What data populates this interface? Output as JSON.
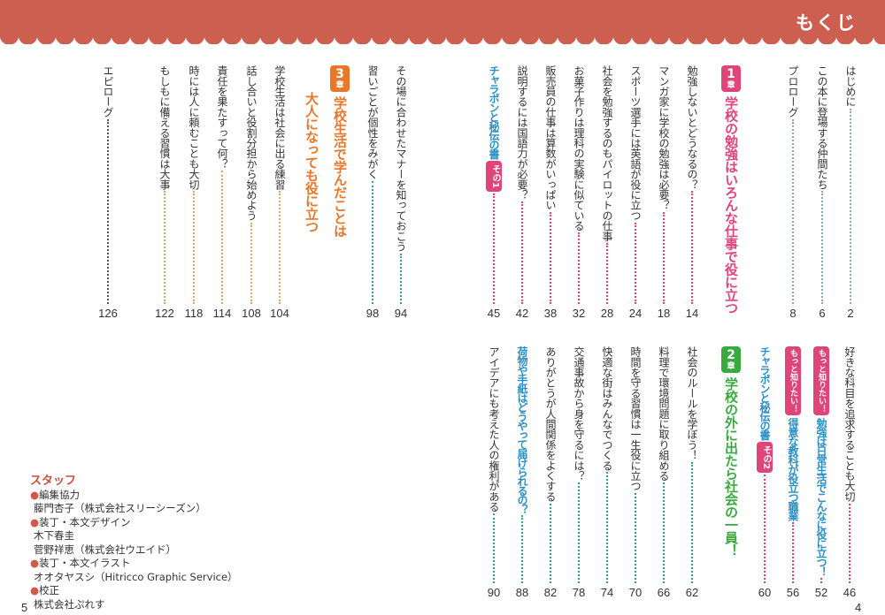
{
  "header": {
    "title": "もくじ"
  },
  "colors": {
    "header": "#cd5f50",
    "chapter1": "#e0457a",
    "chapter2": "#3aaa3f",
    "chapter3": "#e8772a",
    "special": "#2a8fc4",
    "badge": "#e0457a"
  },
  "right_top": [
    {
      "type": "item",
      "text": "はじめに",
      "page": "2"
    },
    {
      "type": "item",
      "text": "この本に登場する仲間たち",
      "page": "6"
    },
    {
      "type": "item",
      "text": "プロローグ",
      "page": "8"
    },
    {
      "type": "chapter",
      "num": "1",
      "suffix": "章",
      "lines": [
        "学校の勉強はいろんな仕事で役に立つ"
      ],
      "color": "#e0457a"
    },
    {
      "type": "item",
      "text": "勉強しないとどうなるの？",
      "page": "14",
      "lead": "#e0457a"
    },
    {
      "type": "item",
      "text": "マンガ家に学校の勉強は必要？",
      "page": "18",
      "lead": "#e0457a"
    },
    {
      "type": "item",
      "text": "スポーツ選手には英語が役に立つ",
      "page": "24",
      "lead": "#e0457a"
    },
    {
      "type": "item",
      "text": "社会を勉強するのもパイロットの仕事",
      "page": "28",
      "lead": "#e0457a"
    },
    {
      "type": "item",
      "text": "お菓子作りは理科の実験に似ている",
      "page": "32",
      "lead": "#e0457a"
    },
    {
      "type": "item",
      "text": "販売員の仕事は算数がいっぱい",
      "page": "38",
      "lead": "#e0457a"
    },
    {
      "type": "item",
      "text": "説明するには国語力が必要？",
      "page": "42",
      "lead": "#e0457a"
    },
    {
      "type": "sono",
      "text": "チャラポンと秘伝の書",
      "badge": "その1",
      "page": "45",
      "lead": "#e0457a"
    }
  ],
  "right_bottom": [
    {
      "type": "item",
      "text": "好きな科目を追求することも大切",
      "page": "46",
      "lead": "#e0457a"
    },
    {
      "type": "motto",
      "badge": "もっと知りたい！",
      "text": "勉強は日常生活でこんなに役に立つ！",
      "page": "52",
      "lead": "#e0457a"
    },
    {
      "type": "motto",
      "badge": "もっと知りたい！",
      "text": "得意な教科が役立つ職業",
      "page": "56",
      "lead": "#e0457a"
    },
    {
      "type": "sono",
      "text": "チャラポンと秘伝の書",
      "badge": "その2",
      "page": "60",
      "lead": "#e0457a"
    },
    {
      "type": "chapter",
      "num": "2",
      "suffix": "章",
      "lines": [
        "学校の外に出たら社会の一員！"
      ],
      "color": "#3aaa3f"
    },
    {
      "type": "item",
      "text": "社会のルールを学ぼう！",
      "page": "62",
      "lead": "#3a9a8a"
    },
    {
      "type": "item",
      "text": "料理で環境問題に取り組める",
      "page": "66",
      "lead": "#3a9a8a"
    },
    {
      "type": "item",
      "text": "時間を守る習慣は一生役に立つ",
      "page": "70",
      "lead": "#3a9a8a"
    },
    {
      "type": "item",
      "text": "快適な街はみんなでつくる",
      "page": "74",
      "lead": "#3a9a8a"
    },
    {
      "type": "item",
      "text": "交通事故から身を守るには？",
      "page": "78",
      "lead": "#3a9a8a"
    },
    {
      "type": "item",
      "text": "ありがとうが人間関係をよくする",
      "page": "82",
      "lead": "#3a9a8a"
    },
    {
      "type": "special",
      "text": "荷物や手紙はどうやって届けられるの？",
      "page": "88",
      "lead": "#3a9a8a"
    },
    {
      "type": "item",
      "text": "アイデアにも考えた人の権利がある",
      "page": "90",
      "lead": "#3a9a8a"
    }
  ],
  "left_top": [
    {
      "type": "item",
      "text": "その場に合わせたマナーを知っておこう",
      "page": "94",
      "lead": "#3a9a8a"
    },
    {
      "type": "item",
      "text": "習いごとが個性をみがく",
      "page": "98",
      "lead": "#3a9a8a"
    },
    {
      "type": "chapter",
      "num": "3",
      "suffix": "章",
      "lines": [
        "学校生活で学んだことは",
        "大人になっても役に立つ"
      ],
      "color": "#e8772a"
    },
    {
      "type": "item",
      "text": "学校生活は社会に出る練習",
      "page": "104",
      "lead": "#e8a060"
    },
    {
      "type": "item",
      "text": "話し合いと役割分担から始めよう",
      "page": "108",
      "lead": "#e8a060"
    },
    {
      "type": "item",
      "text": "責任を果たすって何？",
      "page": "114",
      "lead": "#e8a060"
    },
    {
      "type": "item",
      "text": "時には人に頼むことも大切",
      "page": "118",
      "lead": "#e8a060"
    },
    {
      "type": "item",
      "text": "もしもに備える習慣は大事",
      "page": "122",
      "lead": "#e8a060"
    },
    {
      "type": "item",
      "text": "エピローグ",
      "page": "126",
      "lead": "#556"
    }
  ],
  "staff": {
    "heading": "スタッフ",
    "groups": [
      {
        "role": "編集協力",
        "names": [
          "藤門杏子（株式会社スリーシーズン）"
        ]
      },
      {
        "role": "装丁・本文デザイン",
        "names": [
          "木下春圭",
          "菅野祥恵（株式会社ウエイド）"
        ]
      },
      {
        "role": "装丁・本文イラスト",
        "names": [
          "オオタヤスシ（Hitricco Graphic Service）"
        ]
      },
      {
        "role": "校正",
        "names": [
          "株式会社ぷれす"
        ]
      }
    ]
  },
  "page_numbers": {
    "left": "5",
    "right": "4"
  }
}
